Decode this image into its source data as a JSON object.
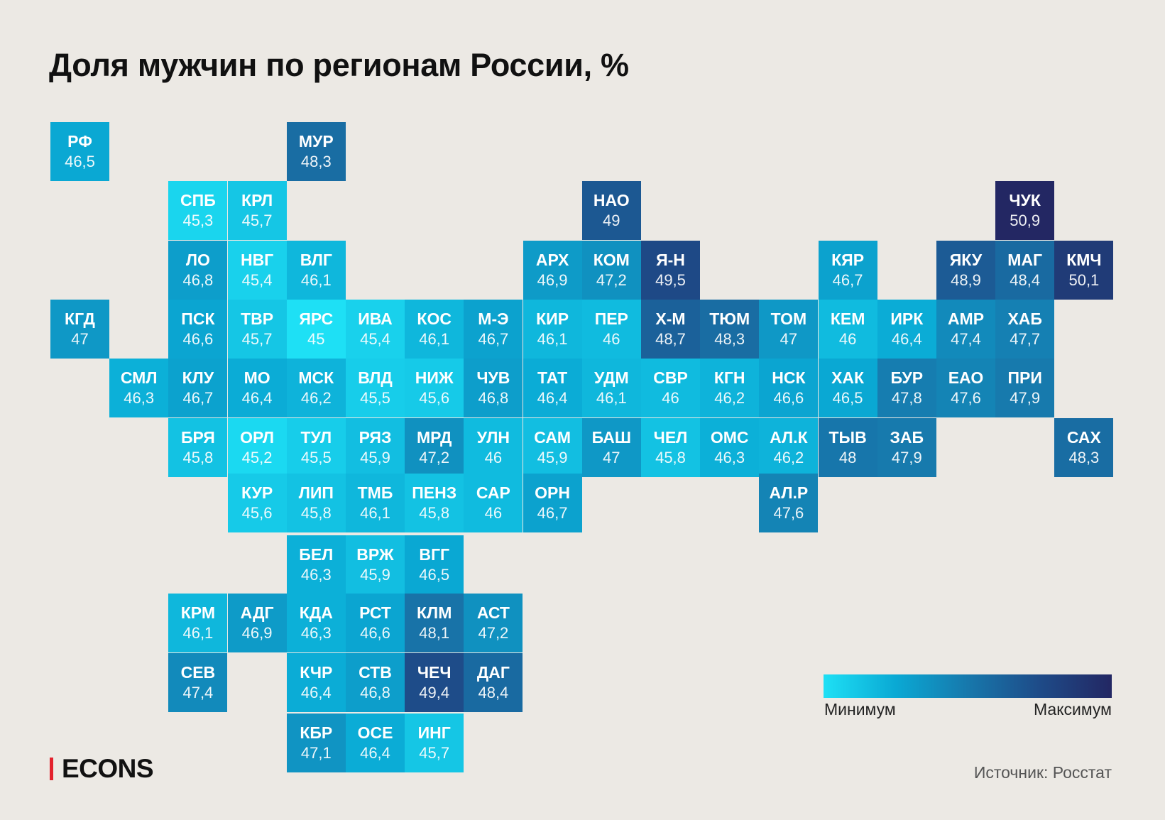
{
  "title": "Доля мужчин по регионам России, %",
  "legend": {
    "min_label": "Минимум",
    "max_label": "Максимум",
    "min_color": "#1ee0f5",
    "max_color": "#232763"
  },
  "brand": "ECONS",
  "source": "Источник: Росстат",
  "colors": {
    "background": "#ece9e4",
    "brand_red": "#e3222d"
  },
  "chart_data": {
    "type": "heatmap",
    "title": "Доля мужчин по регионам России, %",
    "color_scale": {
      "min": 45.0,
      "max": 50.9,
      "colors": [
        "#1ee0f5",
        "#0aa9d4",
        "#1778ac",
        "#1e4b88",
        "#232763"
      ]
    },
    "tiles": [
      {
        "code": "РФ",
        "value": 46.5,
        "label": "46,5",
        "col": 0,
        "row": 0
      },
      {
        "code": "МУР",
        "value": 48.3,
        "label": "48,3",
        "col": 4,
        "row": 0
      },
      {
        "code": "СПБ",
        "value": 45.3,
        "label": "45,3",
        "col": 2,
        "row": 1
      },
      {
        "code": "КРЛ",
        "value": 45.7,
        "label": "45,7",
        "col": 3,
        "row": 1
      },
      {
        "code": "НАО",
        "value": 49,
        "label": "49",
        "col": 9,
        "row": 1
      },
      {
        "code": "ЧУК",
        "value": 50.9,
        "label": "50,9",
        "col": 16,
        "row": 1
      },
      {
        "code": "ЛО",
        "value": 46.8,
        "label": "46,8",
        "col": 2,
        "row": 2
      },
      {
        "code": "НВГ",
        "value": 45.4,
        "label": "45,4",
        "col": 3,
        "row": 2
      },
      {
        "code": "ВЛГ",
        "value": 46.1,
        "label": "46,1",
        "col": 4,
        "row": 2
      },
      {
        "code": "АРХ",
        "value": 46.9,
        "label": "46,9",
        "col": 8,
        "row": 2
      },
      {
        "code": "КОМ",
        "value": 47.2,
        "label": "47,2",
        "col": 9,
        "row": 2
      },
      {
        "code": "Я-Н",
        "value": 49.5,
        "label": "49,5",
        "col": 10,
        "row": 2
      },
      {
        "code": "КЯР",
        "value": 46.7,
        "label": "46,7",
        "col": 13,
        "row": 2
      },
      {
        "code": "ЯКУ",
        "value": 48.9,
        "label": "48,9",
        "col": 15,
        "row": 2
      },
      {
        "code": "МАГ",
        "value": 48.4,
        "label": "48,4",
        "col": 16,
        "row": 2
      },
      {
        "code": "КМЧ",
        "value": 50.1,
        "label": "50,1",
        "col": 17,
        "row": 2
      },
      {
        "code": "КГД",
        "value": 47,
        "label": "47",
        "col": 0,
        "row": 3
      },
      {
        "code": "ПСК",
        "value": 46.6,
        "label": "46,6",
        "col": 2,
        "row": 3
      },
      {
        "code": "ТВР",
        "value": 45.7,
        "label": "45,7",
        "col": 3,
        "row": 3
      },
      {
        "code": "ЯРС",
        "value": 45,
        "label": "45",
        "col": 4,
        "row": 3
      },
      {
        "code": "ИВА",
        "value": 45.4,
        "label": "45,4",
        "col": 5,
        "row": 3
      },
      {
        "code": "КОС",
        "value": 46.1,
        "label": "46,1",
        "col": 6,
        "row": 3
      },
      {
        "code": "М-Э",
        "value": 46.7,
        "label": "46,7",
        "col": 7,
        "row": 3
      },
      {
        "code": "КИР",
        "value": 46.1,
        "label": "46,1",
        "col": 8,
        "row": 3
      },
      {
        "code": "ПЕР",
        "value": 46,
        "label": "46",
        "col": 9,
        "row": 3
      },
      {
        "code": "Х-М",
        "value": 48.7,
        "label": "48,7",
        "col": 10,
        "row": 3
      },
      {
        "code": "ТЮМ",
        "value": 48.3,
        "label": "48,3",
        "col": 11,
        "row": 3
      },
      {
        "code": "ТОМ",
        "value": 47,
        "label": "47",
        "col": 12,
        "row": 3
      },
      {
        "code": "КЕМ",
        "value": 46,
        "label": "46",
        "col": 13,
        "row": 3
      },
      {
        "code": "ИРК",
        "value": 46.4,
        "label": "46,4",
        "col": 14,
        "row": 3
      },
      {
        "code": "АМР",
        "value": 47.4,
        "label": "47,4",
        "col": 15,
        "row": 3
      },
      {
        "code": "ХАБ",
        "value": 47.7,
        "label": "47,7",
        "col": 16,
        "row": 3
      },
      {
        "code": "СМЛ",
        "value": 46.3,
        "label": "46,3",
        "col": 1,
        "row": 4
      },
      {
        "code": "КЛУ",
        "value": 46.7,
        "label": "46,7",
        "col": 2,
        "row": 4
      },
      {
        "code": "МО",
        "value": 46.4,
        "label": "46,4",
        "col": 3,
        "row": 4
      },
      {
        "code": "МСК",
        "value": 46.2,
        "label": "46,2",
        "col": 4,
        "row": 4
      },
      {
        "code": "ВЛД",
        "value": 45.5,
        "label": "45,5",
        "col": 5,
        "row": 4
      },
      {
        "code": "НИЖ",
        "value": 45.6,
        "label": "45,6",
        "col": 6,
        "row": 4
      },
      {
        "code": "ЧУВ",
        "value": 46.8,
        "label": "46,8",
        "col": 7,
        "row": 4
      },
      {
        "code": "ТАТ",
        "value": 46.4,
        "label": "46,4",
        "col": 8,
        "row": 4
      },
      {
        "code": "УДМ",
        "value": 46.1,
        "label": "46,1",
        "col": 9,
        "row": 4
      },
      {
        "code": "СВР",
        "value": 46,
        "label": "46",
        "col": 10,
        "row": 4
      },
      {
        "code": "КГН",
        "value": 46.2,
        "label": "46,2",
        "col": 11,
        "row": 4
      },
      {
        "code": "НСК",
        "value": 46.6,
        "label": "46,6",
        "col": 12,
        "row": 4
      },
      {
        "code": "ХАК",
        "value": 46.5,
        "label": "46,5",
        "col": 13,
        "row": 4
      },
      {
        "code": "БУР",
        "value": 47.8,
        "label": "47,8",
        "col": 14,
        "row": 4
      },
      {
        "code": "ЕАО",
        "value": 47.6,
        "label": "47,6",
        "col": 15,
        "row": 4
      },
      {
        "code": "ПРИ",
        "value": 47.9,
        "label": "47,9",
        "col": 16,
        "row": 4
      },
      {
        "code": "БРЯ",
        "value": 45.8,
        "label": "45,8",
        "col": 2,
        "row": 5
      },
      {
        "code": "ОРЛ",
        "value": 45.2,
        "label": "45,2",
        "col": 3,
        "row": 5
      },
      {
        "code": "ТУЛ",
        "value": 45.5,
        "label": "45,5",
        "col": 4,
        "row": 5
      },
      {
        "code": "РЯЗ",
        "value": 45.9,
        "label": "45,9",
        "col": 5,
        "row": 5
      },
      {
        "code": "МРД",
        "value": 47.2,
        "label": "47,2",
        "col": 6,
        "row": 5
      },
      {
        "code": "УЛН",
        "value": 46,
        "label": "46",
        "col": 7,
        "row": 5
      },
      {
        "code": "САМ",
        "value": 45.9,
        "label": "45,9",
        "col": 8,
        "row": 5
      },
      {
        "code": "БАШ",
        "value": 47,
        "label": "47",
        "col": 9,
        "row": 5
      },
      {
        "code": "ЧЕЛ",
        "value": 45.8,
        "label": "45,8",
        "col": 10,
        "row": 5
      },
      {
        "code": "ОМС",
        "value": 46.3,
        "label": "46,3",
        "col": 11,
        "row": 5
      },
      {
        "code": "АЛ.К",
        "value": 46.2,
        "label": "46,2",
        "col": 12,
        "row": 5
      },
      {
        "code": "ТЫВ",
        "value": 48,
        "label": "48",
        "col": 13,
        "row": 5
      },
      {
        "code": "ЗАБ",
        "value": 47.9,
        "label": "47,9",
        "col": 14,
        "row": 5
      },
      {
        "code": "САХ",
        "value": 48.3,
        "label": "48,3",
        "col": 17,
        "row": 5
      },
      {
        "code": "КУР",
        "value": 45.6,
        "label": "45,6",
        "col": 3,
        "row": 6
      },
      {
        "code": "ЛИП",
        "value": 45.8,
        "label": "45,8",
        "col": 4,
        "row": 6
      },
      {
        "code": "ТМБ",
        "value": 46.1,
        "label": "46,1",
        "col": 5,
        "row": 6
      },
      {
        "code": "ПЕНЗ",
        "value": 45.8,
        "label": "45,8",
        "col": 6,
        "row": 6
      },
      {
        "code": "САР",
        "value": 46,
        "label": "46",
        "col": 7,
        "row": 6
      },
      {
        "code": "ОРН",
        "value": 46.7,
        "label": "46,7",
        "col": 8,
        "row": 6
      },
      {
        "code": "АЛ.Р",
        "value": 47.6,
        "label": "47,6",
        "col": 12,
        "row": 6
      },
      {
        "code": "БЕЛ",
        "value": 46.3,
        "label": "46,3",
        "col": 4,
        "row": 7
      },
      {
        "code": "ВРЖ",
        "value": 45.9,
        "label": "45,9",
        "col": 5,
        "row": 7
      },
      {
        "code": "ВГГ",
        "value": 46.5,
        "label": "46,5",
        "col": 6,
        "row": 7
      },
      {
        "code": "КРМ",
        "value": 46.1,
        "label": "46,1",
        "col": 2,
        "row": 8
      },
      {
        "code": "АДГ",
        "value": 46.9,
        "label": "46,9",
        "col": 3,
        "row": 8
      },
      {
        "code": "КДА",
        "value": 46.3,
        "label": "46,3",
        "col": 4,
        "row": 8
      },
      {
        "code": "РСТ",
        "value": 46.6,
        "label": "46,6",
        "col": 5,
        "row": 8
      },
      {
        "code": "КЛМ",
        "value": 48.1,
        "label": "48,1",
        "col": 6,
        "row": 8
      },
      {
        "code": "АСТ",
        "value": 47.2,
        "label": "47,2",
        "col": 7,
        "row": 8
      },
      {
        "code": "СЕВ",
        "value": 47.4,
        "label": "47,4",
        "col": 2,
        "row": 9
      },
      {
        "code": "КЧР",
        "value": 46.4,
        "label": "46,4",
        "col": 4,
        "row": 9
      },
      {
        "code": "СТВ",
        "value": 46.8,
        "label": "46,8",
        "col": 5,
        "row": 9
      },
      {
        "code": "ЧЕЧ",
        "value": 49.4,
        "label": "49,4",
        "col": 6,
        "row": 9
      },
      {
        "code": "ДАГ",
        "value": 48.4,
        "label": "48,4",
        "col": 7,
        "row": 9
      },
      {
        "code": "КБР",
        "value": 47.1,
        "label": "47,1",
        "col": 4,
        "row": 10
      },
      {
        "code": "ОСЕ",
        "value": 46.4,
        "label": "46,4",
        "col": 5,
        "row": 10
      },
      {
        "code": "ИНГ",
        "value": 45.7,
        "label": "45,7",
        "col": 6,
        "row": 10
      }
    ]
  }
}
